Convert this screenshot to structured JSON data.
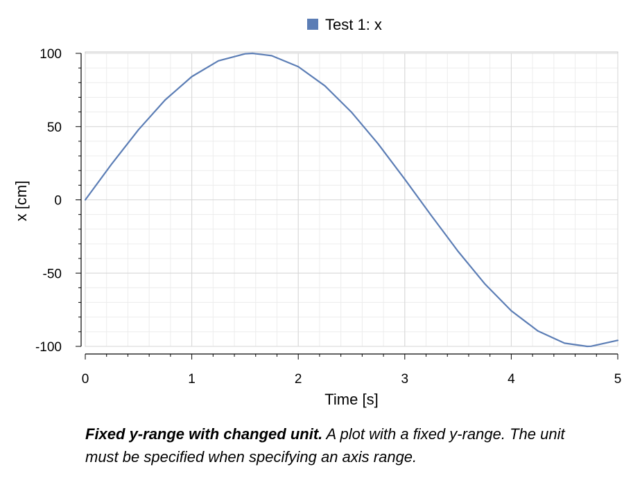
{
  "chart_data": {
    "type": "line",
    "xlabel": "Time [s]",
    "ylabel": "x [cm]",
    "xlim": [
      0,
      5
    ],
    "ylim": [
      -100,
      100
    ],
    "x_ticks": [
      0,
      1,
      2,
      3,
      4,
      5
    ],
    "x_tick_labels": [
      "0",
      "1",
      "2",
      "3",
      "4",
      "5"
    ],
    "y_ticks": [
      100,
      50,
      0,
      -50,
      -100
    ],
    "y_tick_labels": [
      "100",
      "50",
      "0",
      "-50",
      "-100"
    ],
    "grid": true,
    "legend_position": "top-center",
    "series": [
      {
        "name": "Test 1: x",
        "color": "#5b7db5",
        "x": [
          0,
          0.25,
          0.5,
          0.75,
          1.0,
          1.25,
          1.5,
          1.5708,
          1.75,
          2.0,
          2.25,
          2.5,
          2.75,
          3.0,
          3.25,
          3.5,
          3.75,
          4.0,
          4.25,
          4.5,
          4.7124,
          4.75,
          5.0
        ],
        "y": [
          0,
          24.7,
          47.9,
          68.2,
          84.1,
          94.9,
          99.7,
          100,
          98.4,
          90.9,
          77.8,
          59.8,
          38.2,
          14.1,
          -10.8,
          -35.1,
          -57.2,
          -75.7,
          -89.5,
          -97.8,
          -100,
          -99.9,
          -95.9
        ]
      }
    ]
  },
  "legend": {
    "label": "Test 1: x",
    "swatch_color": "#5b7db5"
  },
  "caption": {
    "title": "Fixed y-range with changed unit.",
    "text": " A plot with a fixed y-range. The unit must be specified when specifying an axis range."
  }
}
